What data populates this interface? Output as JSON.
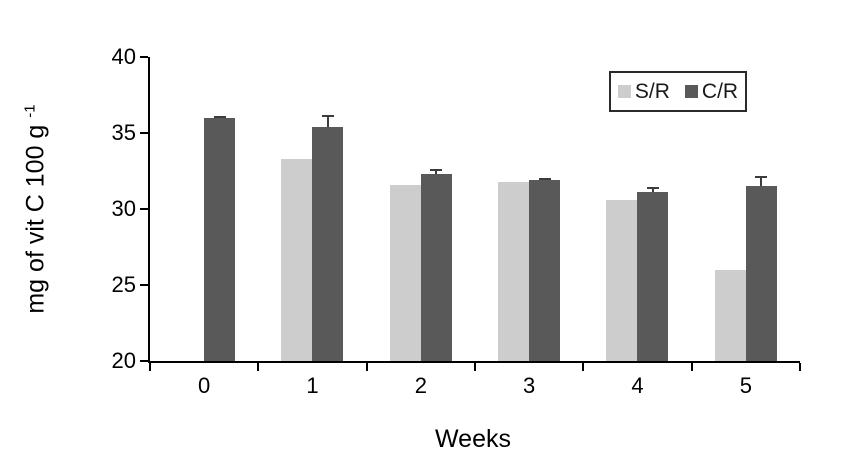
{
  "page": {
    "background": "#ffffff"
  },
  "chart_data": {
    "type": "bar",
    "title": "",
    "xlabel": "Weeks",
    "ylabel": "mg of vit C 100 g⁻¹",
    "ylabel_main": "mg of vit C 100 g",
    "ylabel_sup": "-1",
    "categories": [
      "0",
      "1",
      "2",
      "3",
      "4",
      "5"
    ],
    "series": [
      {
        "name": "S/R",
        "color": "#cdcdcd",
        "values": [
          null,
          33.3,
          31.6,
          31.8,
          30.6,
          26.0
        ],
        "errors": [
          null,
          null,
          null,
          null,
          null,
          null
        ]
      },
      {
        "name": "C/R",
        "color": "#595959",
        "values": [
          36.0,
          35.4,
          32.3,
          31.9,
          31.1,
          31.5
        ],
        "errors": [
          0.15,
          0.8,
          0.35,
          0.15,
          0.35,
          0.7
        ]
      }
    ],
    "ylim": [
      20,
      40
    ],
    "yticks": [
      40,
      35,
      30,
      25,
      20
    ],
    "grid": false,
    "legend_position": "top-right",
    "axis_color": "#000000",
    "error_bar_color": "#3c3c3c"
  }
}
